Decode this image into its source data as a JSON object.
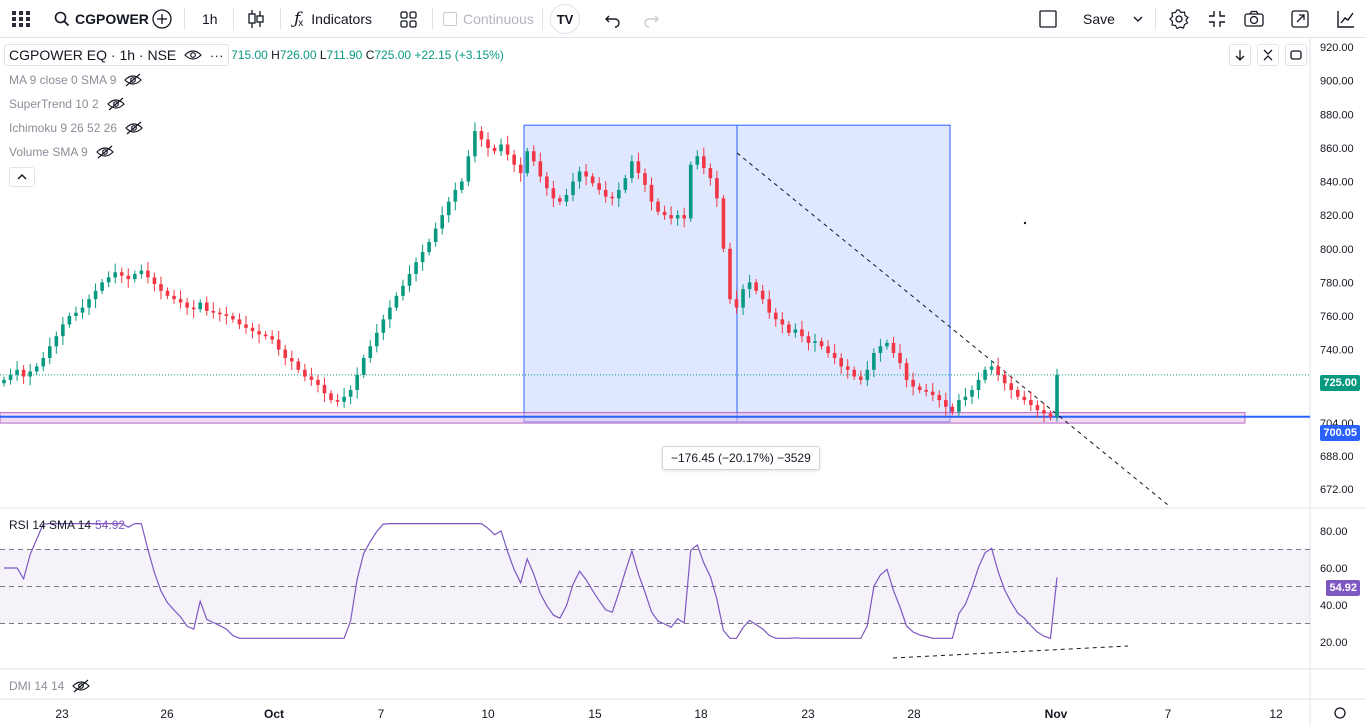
{
  "toolbar": {
    "symbol": "CGPOWER",
    "interval": "1h",
    "indicators_label": "Indicators",
    "continuous_label": "Continuous",
    "save_label": "Save",
    "tv_logo_text": "TV"
  },
  "legend": {
    "title": "CGPOWER EQ · 1h · NSE",
    "open_label": "",
    "open": "715.00",
    "high_label": "H",
    "high": "726.00",
    "low_label": "L",
    "low": "711.90",
    "close_label": "C",
    "close": "725.00",
    "change": "+22.15 (+3.15%)",
    "indicators": [
      {
        "label": "MA 9 close 0 SMA 9"
      },
      {
        "label": "SuperTrend 10 2"
      },
      {
        "label": "Ichimoku 9 26 52 26"
      },
      {
        "label": "Volume SMA 9"
      }
    ]
  },
  "rsi": {
    "label": "RSI 14 SMA 14",
    "value": "54.92"
  },
  "dmi": {
    "label": "DMI 14 14"
  },
  "price_axis": {
    "ticks": [
      "920.00",
      "900.00",
      "880.00",
      "860.00",
      "840.00",
      "820.00",
      "800.00",
      "780.00",
      "760.00",
      "740.00",
      "720.00",
      "704.00",
      "688.00",
      "672.00"
    ],
    "last_price": "725.00",
    "hline_price": "700.05"
  },
  "rsi_axis": {
    "ticks": [
      "80.00",
      "60.00",
      "40.00",
      "20.00"
    ],
    "last": "54.92"
  },
  "time_axis": {
    "ticks": [
      "23",
      "26",
      "Oct",
      "7",
      "10",
      "15",
      "18",
      "23",
      "28",
      "Nov",
      "7",
      "12"
    ]
  },
  "measure": {
    "label": "−176.45 (−20.17%) −3529"
  },
  "colors": {
    "up": "#089981",
    "down": "#f23645",
    "measure_fill": "#2962ff",
    "rsi": "#7e57c2",
    "hline": "#2962ff",
    "zone": "#e1bee7"
  },
  "chart_data": {
    "type": "candlestick",
    "price_range": [
      662,
      928
    ],
    "rsi_range": [
      15,
      88
    ],
    "last_price": 725.0,
    "horizontal_line": 700.05,
    "rsi_upper": 70,
    "rsi_middle": 50,
    "rsi_lower": 30,
    "measure": {
      "from": 873.5,
      "to": 697.05,
      "change": -176.45,
      "change_pct": -20.17,
      "bars": -3529
    },
    "closes": [
      722,
      725,
      728,
      724,
      727,
      730,
      735,
      742,
      748,
      755,
      760,
      762,
      765,
      770,
      775,
      780,
      783,
      786,
      784,
      782,
      785,
      787,
      783,
      779,
      775,
      772,
      770,
      768,
      765,
      764,
      768,
      763,
      762,
      761,
      760,
      758,
      755,
      753,
      751,
      749,
      748,
      746,
      740,
      735,
      733,
      728,
      724,
      722,
      719,
      714,
      710,
      709,
      712,
      716,
      725,
      735,
      742,
      750,
      758,
      765,
      772,
      778,
      785,
      792,
      798,
      804,
      812,
      820,
      828,
      835,
      840,
      855,
      870,
      865,
      860,
      858,
      862,
      856,
      850,
      845,
      858,
      852,
      843,
      836,
      830,
      828,
      832,
      840,
      846,
      843,
      839,
      835,
      831,
      830,
      835,
      842,
      852,
      845,
      838,
      828,
      822,
      820,
      818,
      820,
      818,
      850,
      855,
      848,
      842,
      830,
      800,
      770,
      765,
      776,
      780,
      775,
      770,
      762,
      758,
      755,
      750,
      752,
      748,
      744,
      745,
      742,
      738,
      735,
      730,
      728,
      724,
      722,
      728,
      738,
      742,
      744,
      738,
      732,
      722,
      718,
      716,
      715,
      713,
      710,
      706,
      703,
      710,
      712,
      716,
      722,
      728,
      730,
      725,
      720,
      716,
      712,
      710,
      707,
      704,
      702,
      700,
      725
    ]
  }
}
